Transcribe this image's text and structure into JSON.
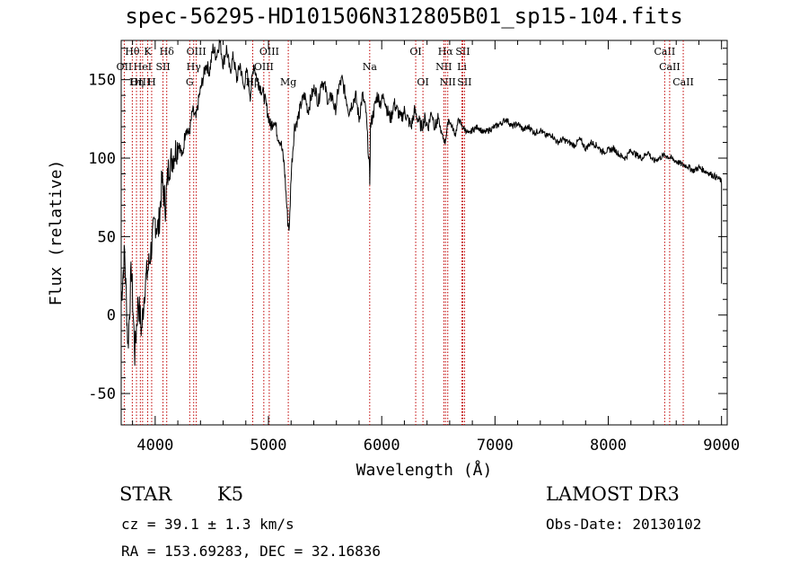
{
  "chart_data": {
    "type": "line",
    "title": "spec-56295-HD101506N312805B01_sp15-104.fits",
    "xlabel": "Wavelength (Å)",
    "ylabel": "Flux (relative)",
    "xlim": [
      3700,
      9050
    ],
    "ylim": [
      -70,
      175
    ],
    "xticks": [
      4000,
      5000,
      6000,
      7000,
      8000,
      9000
    ],
    "yticks": [
      -50,
      0,
      50,
      100,
      150
    ],
    "series": [
      {
        "name": "spectrum",
        "x": [
          3700,
          3730,
          3760,
          3790,
          3820,
          3850,
          3880,
          3910,
          3940,
          3970,
          4000,
          4030,
          4060,
          4090,
          4120,
          4150,
          4180,
          4210,
          4240,
          4270,
          4300,
          4330,
          4360,
          4390,
          4420,
          4450,
          4480,
          4510,
          4540,
          4570,
          4600,
          4630,
          4660,
          4690,
          4720,
          4750,
          4780,
          4810,
          4840,
          4870,
          4900,
          4930,
          4960,
          4990,
          5020,
          5050,
          5080,
          5110,
          5140,
          5170,
          5185,
          5200,
          5230,
          5260,
          5290,
          5320,
          5350,
          5380,
          5410,
          5440,
          5470,
          5500,
          5530,
          5560,
          5590,
          5620,
          5650,
          5680,
          5710,
          5740,
          5770,
          5800,
          5830,
          5860,
          5890,
          5895,
          5900,
          5930,
          5960,
          5990,
          6020,
          6050,
          6080,
          6110,
          6140,
          6170,
          6200,
          6230,
          6260,
          6290,
          6320,
          6350,
          6380,
          6410,
          6440,
          6470,
          6500,
          6530,
          6560,
          6590,
          6620,
          6650,
          6680,
          6710,
          6740,
          6770,
          6800,
          6850,
          6900,
          6950,
          7000,
          7050,
          7100,
          7150,
          7200,
          7250,
          7300,
          7350,
          7400,
          7450,
          7500,
          7550,
          7600,
          7650,
          7700,
          7750,
          7800,
          7850,
          7900,
          7950,
          8000,
          8050,
          8100,
          8150,
          8200,
          8250,
          8300,
          8350,
          8400,
          8450,
          8500,
          8550,
          8600,
          8650,
          8700,
          8750,
          8800,
          8850,
          8900,
          8950,
          8990,
          9000,
          9000
        ],
        "y": [
          10,
          40,
          -20,
          30,
          -25,
          10,
          -10,
          20,
          30,
          45,
          60,
          55,
          85,
          70,
          95,
          100,
          105,
          110,
          100,
          120,
          115,
          130,
          125,
          140,
          150,
          160,
          155,
          170,
          165,
          175,
          160,
          170,
          155,
          165,
          150,
          160,
          145,
          155,
          140,
          160,
          150,
          145,
          140,
          130,
          120,
          125,
          115,
          110,
          95,
          60,
          55,
          90,
          120,
          125,
          135,
          140,
          130,
          140,
          145,
          135,
          150,
          145,
          135,
          140,
          130,
          145,
          150,
          140,
          130,
          135,
          140,
          125,
          140,
          130,
          95,
          85,
          120,
          130,
          140,
          135,
          140,
          130,
          125,
          135,
          130,
          125,
          130,
          125,
          120,
          130,
          125,
          120,
          125,
          120,
          130,
          120,
          125,
          115,
          110,
          125,
          120,
          115,
          125,
          120,
          118,
          115,
          118,
          120,
          116,
          118,
          120,
          122,
          125,
          120,
          122,
          118,
          120,
          116,
          118,
          114,
          115,
          110,
          112,
          110,
          108,
          112,
          106,
          110,
          108,
          104,
          105,
          106,
          102,
          100,
          105,
          102,
          100,
          104,
          98,
          100,
          102,
          100,
          98,
          96,
          95,
          92,
          94,
          92,
          90,
          88,
          86,
          84,
          20
        ]
      }
    ],
    "lines": [
      {
        "label": "Hθ",
        "x": 3798,
        "row": 1
      },
      {
        "label": "OII",
        "x": 3727,
        "row": 2
      },
      {
        "label": "OIII",
        "x": 3869,
        "row": 3
      },
      {
        "label": "K",
        "x": 3934,
        "row": 1
      },
      {
        "label": "HeI",
        "x": 3889,
        "row": 2
      },
      {
        "label": "Hη",
        "x": 3835,
        "row": 3
      },
      {
        "label": "Hδ",
        "x": 4102,
        "row": 1
      },
      {
        "label": "SII",
        "x": 4069,
        "row": 2
      },
      {
        "label": "H",
        "x": 3969,
        "row": 3
      },
      {
        "label": "OIII",
        "x": 4363,
        "row": 1
      },
      {
        "label": "Hγ",
        "x": 4340,
        "row": 2
      },
      {
        "label": "G",
        "x": 4305,
        "row": 3
      },
      {
        "label": "OIII",
        "x": 5007,
        "row": 1
      },
      {
        "label": "OIII",
        "x": 4959,
        "row": 2
      },
      {
        "label": "Hβ",
        "x": 4861,
        "row": 3
      },
      {
        "label": "Mg",
        "x": 5175,
        "row": 3
      },
      {
        "label": "Na",
        "x": 5894,
        "row": 2
      },
      {
        "label": "OI",
        "x": 6300,
        "row": 1
      },
      {
        "label": "OI",
        "x": 6364,
        "row": 3
      },
      {
        "label": "Hα",
        "x": 6563,
        "row": 1
      },
      {
        "label": "SII",
        "x": 6716,
        "row": 1
      },
      {
        "label": "NII",
        "x": 6548,
        "row": 2
      },
      {
        "label": "Li",
        "x": 6708,
        "row": 2
      },
      {
        "label": "NII",
        "x": 6583,
        "row": 3
      },
      {
        "label": "SII",
        "x": 6731,
        "row": 3
      },
      {
        "label": "CaII",
        "x": 8498,
        "row": 1
      },
      {
        "label": "CaII",
        "x": 8542,
        "row": 2
      },
      {
        "label": "CaII",
        "x": 8662,
        "row": 3
      }
    ]
  },
  "footer": {
    "class": "STAR",
    "subclass": "K5",
    "survey": "LAMOST DR3",
    "cz": "cz = 39.1 ± 1.3 km/s",
    "obs_date": "Obs-Date: 20130102",
    "radec": "RA = 153.69283, DEC =  32.16836"
  }
}
